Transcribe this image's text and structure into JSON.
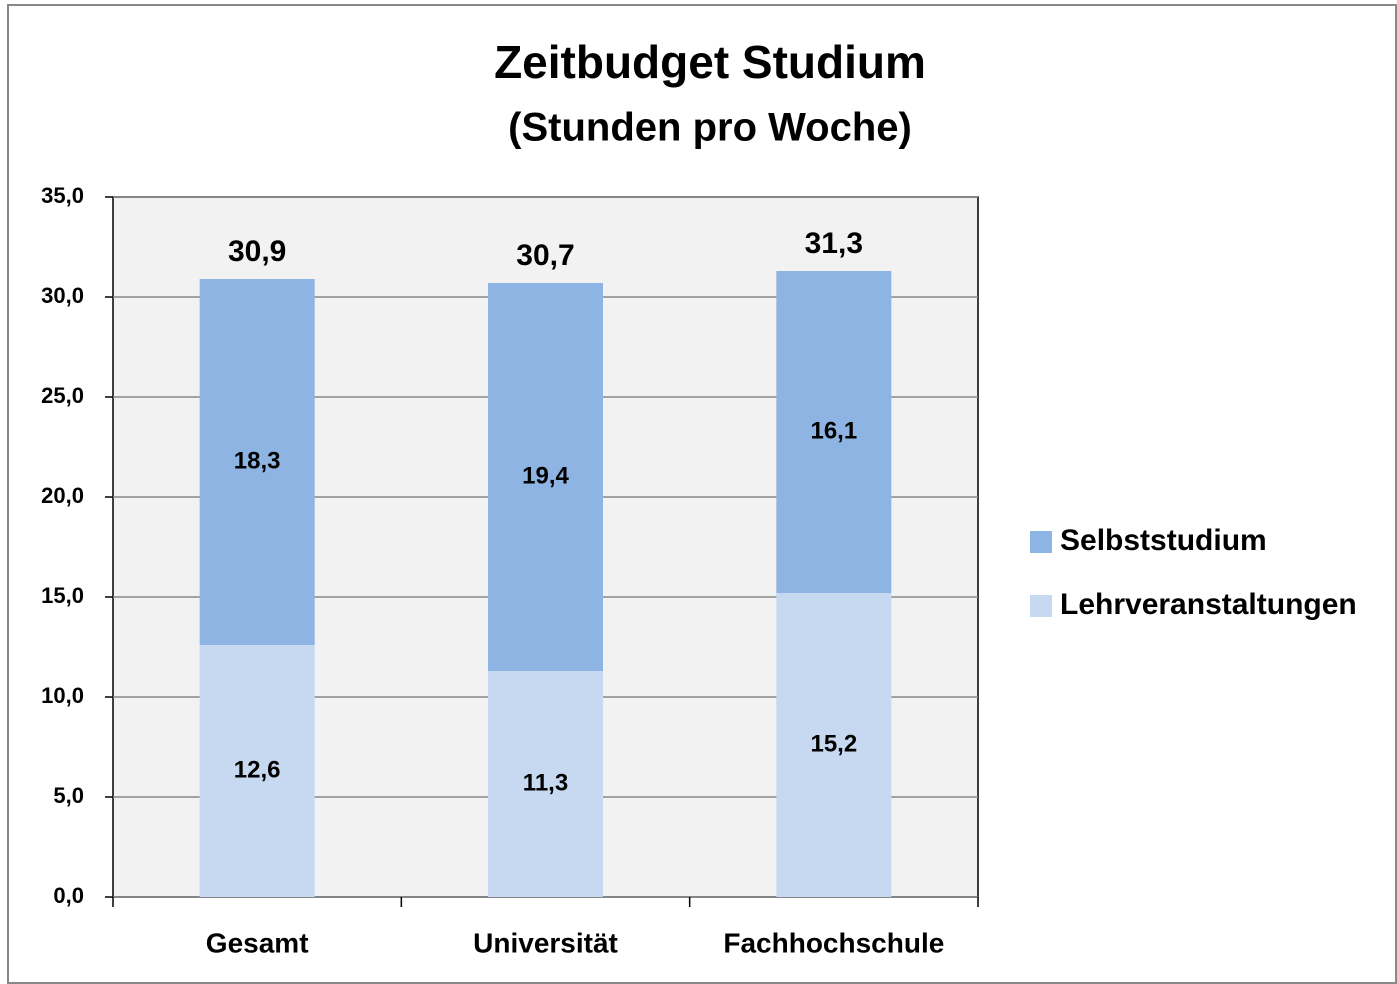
{
  "chart_data": {
    "type": "stacked_bar",
    "title": "Zeitbudget Studium",
    "subtitle": "(Stunden pro Woche)",
    "categories": [
      "Gesamt",
      "Universität",
      "Fachhochschule"
    ],
    "series": [
      {
        "name": "Lehrveranstaltungen",
        "color": "#c6d9f1",
        "values": [
          12.6,
          11.3,
          15.2
        ],
        "value_labels": [
          "12,6",
          "11,3",
          "15,2"
        ]
      },
      {
        "name": "Selbststudium",
        "color": "#8eb4e3",
        "values": [
          18.3,
          19.4,
          16.1
        ],
        "value_labels": [
          "18,3",
          "19,4",
          "16,1"
        ]
      }
    ],
    "totals": {
      "values": [
        30.9,
        30.7,
        31.3
      ],
      "value_labels": [
        "30,9",
        "30,7",
        "31,3"
      ]
    },
    "ylim": [
      0,
      35
    ],
    "yticks": [
      {
        "value": 0,
        "label": "0,0"
      },
      {
        "value": 5,
        "label": "5,0"
      },
      {
        "value": 10,
        "label": "10,0"
      },
      {
        "value": 15,
        "label": "15,0"
      },
      {
        "value": 20,
        "label": "20,0"
      },
      {
        "value": 25,
        "label": "25,0"
      },
      {
        "value": 30,
        "label": "30,0"
      },
      {
        "value": 35,
        "label": "35,0"
      }
    ],
    "grid": true,
    "legend": "right"
  }
}
